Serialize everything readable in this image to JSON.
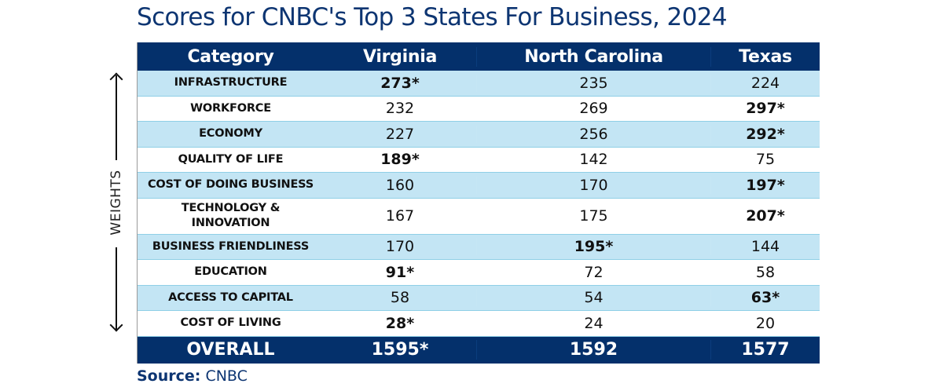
{
  "title": "Scores for CNBC's Top 3 States For Business, 2024",
  "weights_label": "WEIGHTS",
  "source": {
    "label": "Source:",
    "value": "CNBC"
  },
  "colors": {
    "header": "#04306b",
    "row_blue": "#c3e5f4",
    "row_white": "#ffffff",
    "title": "#0d3572"
  },
  "table": {
    "headers": [
      "Category",
      "Virginia",
      "North Carolina",
      "Texas"
    ],
    "rows": [
      {
        "category": "INFRASTRUCTURE",
        "values": [
          "273*",
          "235",
          "224"
        ],
        "best": 0
      },
      {
        "category": "WORKFORCE",
        "values": [
          "232",
          "269",
          "297*"
        ],
        "best": 2
      },
      {
        "category": "ECONOMY",
        "values": [
          "227",
          "256",
          "292*"
        ],
        "best": 2
      },
      {
        "category": "QUALITY OF LIFE",
        "values": [
          "189*",
          "142",
          "75"
        ],
        "best": 0
      },
      {
        "category": "COST OF DOING BUSINESS",
        "values": [
          "160",
          "170",
          "197*"
        ],
        "best": 2
      },
      {
        "category": "TECHNOLOGY & INNOVATION",
        "category_line1": "TECHNOLOGY &",
        "category_line2": "INNOVATION",
        "values": [
          "167",
          "175",
          "207*"
        ],
        "best": 2
      },
      {
        "category": "BUSINESS FRIENDLINESS",
        "values": [
          "170",
          "195*",
          "144"
        ],
        "best": 1
      },
      {
        "category": "EDUCATION",
        "values": [
          "91*",
          "72",
          "58"
        ],
        "best": 0
      },
      {
        "category": "ACCESS TO CAPITAL",
        "values": [
          "58",
          "54",
          "63*"
        ],
        "best": 2
      },
      {
        "category": "COST OF LIVING",
        "values": [
          "28*",
          "24",
          "20"
        ],
        "best": 0
      }
    ],
    "overall": {
      "label": "OVERALL",
      "values": [
        "1595*",
        "1592",
        "1577"
      ]
    }
  },
  "chart_data": {
    "type": "table",
    "title": "Scores for CNBC's Top 3 States For Business, 2024",
    "columns": [
      "Category",
      "Virginia",
      "North Carolina",
      "Texas"
    ],
    "categories": [
      "Infrastructure",
      "Workforce",
      "Economy",
      "Quality of Life",
      "Cost of Doing Business",
      "Technology & Innovation",
      "Business Friendliness",
      "Education",
      "Access to Capital",
      "Cost of Living"
    ],
    "series": [
      {
        "name": "Virginia",
        "values": [
          273,
          232,
          227,
          189,
          160,
          167,
          170,
          91,
          58,
          28
        ],
        "overall": 1595
      },
      {
        "name": "North Carolina",
        "values": [
          235,
          269,
          256,
          142,
          170,
          175,
          195,
          72,
          54,
          24
        ],
        "overall": 1592
      },
      {
        "name": "Texas",
        "values": [
          224,
          297,
          292,
          75,
          197,
          207,
          144,
          58,
          63,
          20
        ],
        "overall": 1577
      }
    ],
    "annotations": [
      "* denotes highest score in category",
      "WEIGHTS axis: categories ordered by weight (top = highest)"
    ],
    "source": "CNBC"
  }
}
